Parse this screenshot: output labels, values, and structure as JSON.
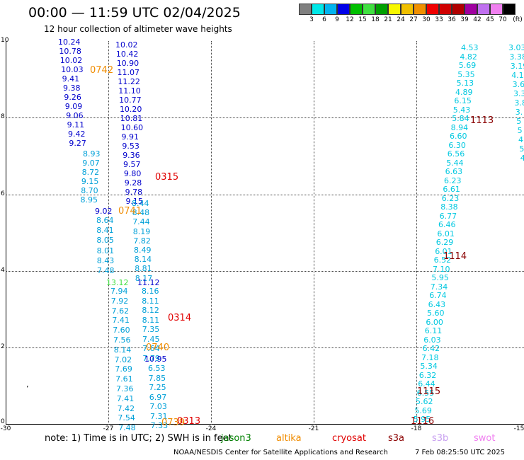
{
  "header": {
    "title": "00:00 — 11:59 UTC 02/04/2025",
    "subtitle": "12 hour collection of altimeter wave heights"
  },
  "colorbar": {
    "unit": "(ft)",
    "colors": [
      "#808080",
      "#00e8e8",
      "#00b4f0",
      "#0000e8",
      "#00c000",
      "#40e040",
      "#00a000",
      "#f8f800",
      "#f0c000",
      "#f09000",
      "#f00000",
      "#d00000",
      "#b00000",
      "#a000a0",
      "#c070f0",
      "#f080f0",
      "#000000"
    ],
    "labels": [
      "3",
      "6",
      "9",
      "12",
      "15",
      "18",
      "21",
      "24",
      "27",
      "30",
      "33",
      "36",
      "39",
      "42",
      "45",
      "70"
    ]
  },
  "axes": {
    "y_ticks": [
      "10",
      "8",
      "6",
      "4",
      "2",
      "0"
    ],
    "x_ticks": [
      "-30",
      "-27",
      "-24",
      "-21",
      "-18",
      "-15"
    ]
  },
  "tracks": [
    {
      "color": "#0000cc",
      "values": [
        "10.24",
        "10.78",
        "10.02",
        "10.03",
        "9.41",
        "9.38",
        "9.26",
        "9.09",
        "9.06",
        "9.11",
        "9.42",
        "9.27"
      ]
    },
    {
      "color": "#00a0d8",
      "values": [
        "8.93",
        "9.07",
        "8.72",
        "9.15",
        "8.70",
        "8.95"
      ]
    },
    {
      "color": "#0000cc",
      "values": [
        "9.02"
      ]
    },
    {
      "color": "#00a0d8",
      "values": [
        "8.64",
        "8.41",
        "8.05",
        "8.01",
        "8.43",
        "7.48"
      ]
    },
    {
      "color": "#40e040",
      "values": [
        "13.12"
      ]
    },
    {
      "color": "#00a0d8",
      "values": [
        "7.94",
        "7.92",
        "7.62",
        "7.41",
        "7.60",
        "7.56",
        "8.14",
        "7.02",
        "7.69",
        "7.61",
        "7.36",
        "7.41",
        "7.42",
        "7.54",
        "7.48"
      ]
    },
    {
      "color": "#0000cc",
      "values": [
        "10.02",
        "10.42",
        "10.90",
        "11.07",
        "11.22",
        "11.10",
        "10.77",
        "10.20",
        "10.81",
        "10.60",
        "9.91",
        "9.53",
        "9.36",
        "9.57",
        "9.80",
        "9.28",
        "9.78",
        "9.15"
      ]
    },
    {
      "color": "#00a0d8",
      "values": [
        "8.44",
        "8.48",
        "7.44",
        "8.19",
        "7.82",
        "8.49",
        "8.14",
        "8.81",
        "8.17"
      ]
    },
    {
      "color": "#0000cc",
      "values": [
        "11.12"
      ]
    },
    {
      "color": "#00a0d8",
      "values": [
        "8.16",
        "8.11",
        "8.12",
        "8.11",
        "7.35",
        "7.45",
        "7.64",
        "7.79"
      ]
    },
    {
      "color": "#0000cc",
      "values": [
        "10.95"
      ]
    },
    {
      "color": "#00a0d8",
      "values": [
        "6.53",
        "7.85",
        "7.25",
        "6.97",
        "7.03",
        "7.31",
        "7.33"
      ]
    },
    {
      "color": "#00c8e0",
      "values": [
        "4.53",
        "4.82",
        "5.69",
        "5.35",
        "5.13",
        "4.89",
        "6.15",
        "5.43",
        "5.84",
        "8.94",
        "6.60",
        "6.30",
        "6.56",
        "5.44",
        "6.63",
        "6.23",
        "6.61",
        "6.23",
        "8.38",
        "6.77",
        "6.46",
        "6.01",
        "6.29",
        "6.01",
        "6.52",
        "7.10",
        "5.95",
        "7.34",
        "6.74",
        "6.43",
        "5.60",
        "6.00",
        "6.11",
        "6.03",
        "6.42",
        "7.18",
        "5.34",
        "6.32",
        "6.44",
        "6.55",
        "5.62",
        "5.69",
        "5.95"
      ]
    },
    {
      "color": "#00c8e0",
      "values": [
        "3.03",
        "3.38",
        "3.19",
        "4.1",
        "3.6",
        "3.3",
        "3.8",
        "3.",
        "5",
        "5",
        "4",
        "5",
        "4"
      ]
    }
  ],
  "passes": [
    {
      "label": "0742",
      "color": "#f08c00"
    },
    {
      "label": "0315",
      "color": "#e00000"
    },
    {
      "label": "0741",
      "color": "#f08c00"
    },
    {
      "label": "0314",
      "color": "#e00000"
    },
    {
      "label": "0740",
      "color": "#f08c00"
    },
    {
      "label": "0739",
      "color": "#f08c00"
    },
    {
      "label": "0313",
      "color": "#e00000"
    },
    {
      "label": "1113",
      "color": "#8b0000"
    },
    {
      "label": "1114",
      "color": "#8b0000"
    },
    {
      "label": "1115",
      "color": "#8b0000"
    },
    {
      "label": "1116",
      "color": "#8b0000"
    }
  ],
  "footer": {
    "note": "note: 1) Time is in UTC; 2) SWH is in feet",
    "satellites": [
      {
        "name": "jason3",
        "color": "#008000"
      },
      {
        "name": "altika",
        "color": "#f08c00"
      },
      {
        "name": "cryosat",
        "color": "#e00000"
      },
      {
        "name": "s3a",
        "color": "#8b0000"
      },
      {
        "name": "s3b",
        "color": "#c8a0f0"
      },
      {
        "name": "swot",
        "color": "#f080f0"
      }
    ],
    "credit": "NOAA/NESDIS Center for Satellite Applications and Research",
    "timestamp": "7 Feb 08:25:50 UTC 2025"
  }
}
